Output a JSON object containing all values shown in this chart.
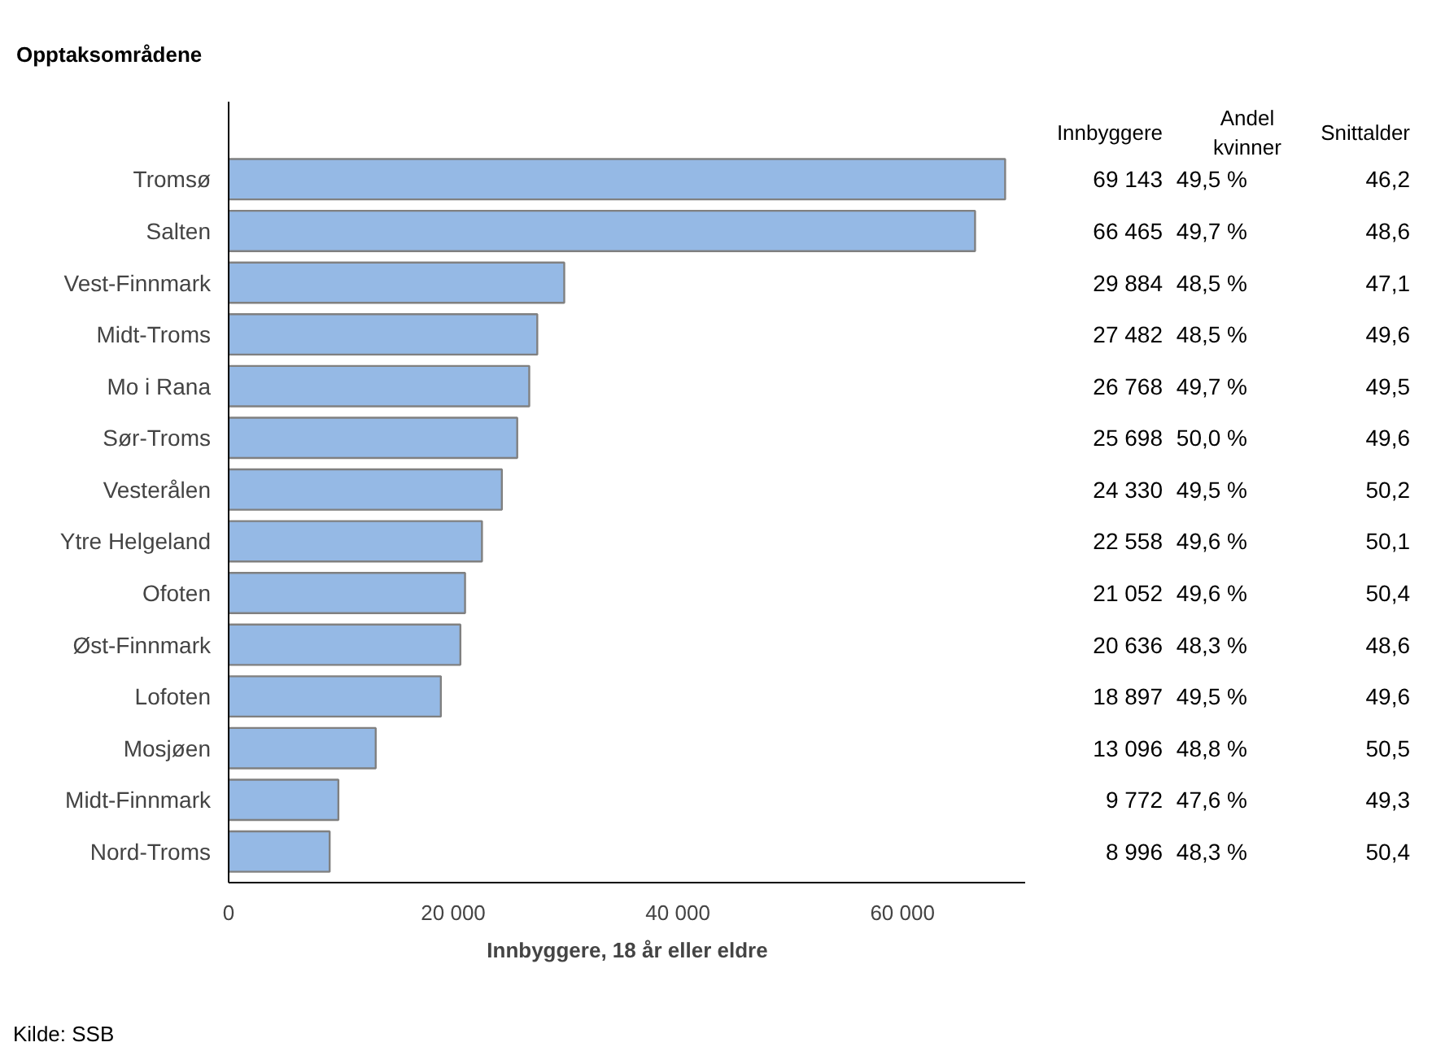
{
  "chart_data": {
    "type": "bar",
    "orientation": "horizontal",
    "title": "Opptaksområdene",
    "xlabel": "Innbyggere, 18 år eller eldre",
    "categories": [
      "Tromsø",
      "Salten",
      "Vest-Finnmark",
      "Midt-Troms",
      "Mo i Rana",
      "Sør-Troms",
      "Vesterålen",
      "Ytre Helgeland",
      "Ofoten",
      "Øst-Finnmark",
      "Lofoten",
      "Mosjøen",
      "Midt-Finnmark",
      "Nord-Troms"
    ],
    "values": [
      69143,
      66465,
      29884,
      27482,
      26768,
      25698,
      24330,
      22558,
      21052,
      20636,
      18897,
      13096,
      9772,
      8996
    ],
    "color": "#95b9e5",
    "xlim": [
      0,
      71000
    ],
    "xticks": [
      0,
      {
        "value": 20000,
        "label": "20 000"
      },
      {
        "value": 40000,
        "label": "40 000"
      },
      {
        "value": 60000,
        "label": "60 000"
      }
    ],
    "data_labels": true,
    "grid": false,
    "annotations": [
      "Kilde: SSB",
      "Innbyggere",
      "Andel\nkvinner",
      "Snittalder",
      "49,5 %",
      "46,2",
      "49,7 %",
      "48,6",
      "48,5 %",
      "47,1",
      "48,5 %",
      "49,6",
      "49,7 %",
      "49,5",
      "50,0 %",
      "49,6",
      "49,5 %",
      "50,2",
      "49,6 %",
      "50,1",
      "49,6 %",
      "50,4",
      "48,3 %",
      "48,6",
      "49,5 %",
      "49,6",
      "48,8 %",
      "50,5",
      "47,6 %",
      "49,3",
      "48,3 %",
      "50,4"
    ]
  }
}
